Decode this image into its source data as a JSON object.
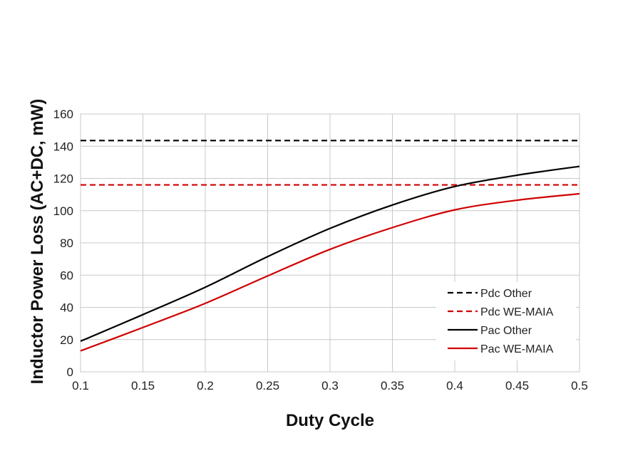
{
  "chart_data": {
    "type": "line",
    "title": "",
    "xlabel": "Duty Cycle",
    "ylabel": "Inductor Power Loss (AC+DC, mW)",
    "xlim": [
      0.1,
      0.5
    ],
    "ylim": [
      0,
      160
    ],
    "xticks": [
      "0.1",
      "0.15",
      "0.2",
      "0.25",
      "0.3",
      "0.35",
      "0.4",
      "0.45",
      "0.5"
    ],
    "yticks": [
      "0",
      "20",
      "40",
      "60",
      "80",
      "100",
      "120",
      "140",
      "160"
    ],
    "grid": true,
    "legend_position": "bottom-right",
    "series": [
      {
        "name": "Pdc Other",
        "color": "#000000",
        "dash": "dashed",
        "x": [
          0.1,
          0.5
        ],
        "y": [
          143.5,
          143.5
        ]
      },
      {
        "name": "Pdc WE-MAIA",
        "color": "#d00000",
        "dash": "dashed",
        "x": [
          0.1,
          0.5
        ],
        "y": [
          116,
          116
        ]
      },
      {
        "name": "Pac Other",
        "color": "#000000",
        "dash": "solid",
        "x": [
          0.1,
          0.15,
          0.2,
          0.25,
          0.3,
          0.35,
          0.4,
          0.45,
          0.5
        ],
        "y": [
          19,
          35.5,
          52.5,
          71.5,
          89,
          103.5,
          115,
          122,
          127.5
        ]
      },
      {
        "name": "Pac WE-MAIA",
        "color": "#d00000",
        "dash": "solid",
        "x": [
          0.1,
          0.15,
          0.2,
          0.25,
          0.3,
          0.35,
          0.4,
          0.45,
          0.5
        ],
        "y": [
          13,
          27.5,
          42.5,
          59.5,
          76,
          89.5,
          100.5,
          106.5,
          110.5
        ]
      }
    ]
  }
}
